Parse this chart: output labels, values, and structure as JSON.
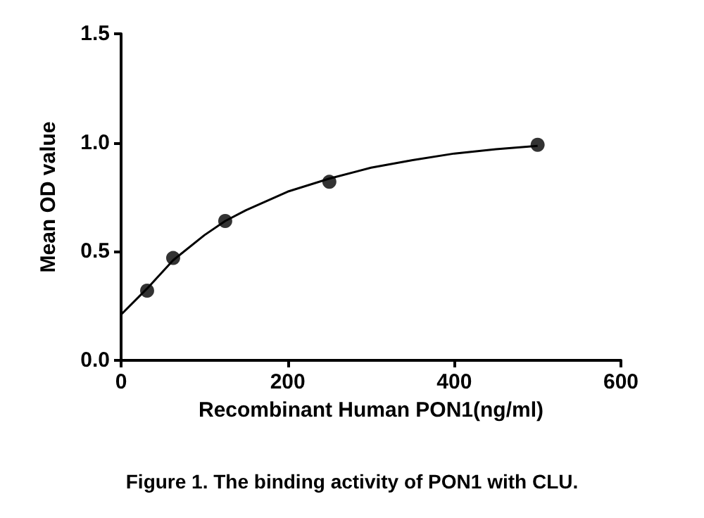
{
  "chart_data": {
    "type": "scatter",
    "title": "Figure 1. The binding activity of PON1 with CLU.",
    "xlabel": "Recombinant Human PON1(ng/ml)",
    "ylabel": "Mean OD value",
    "series": [
      {
        "color": "#000000",
        "marker": "circle",
        "x": [
          31.25,
          62.5,
          125,
          250,
          500
        ],
        "values": [
          0.32,
          0.47,
          0.64,
          0.82,
          0.99
        ]
      },
      {
        "type": "line",
        "color": "#000000",
        "marker": "none",
        "line_style": "solid",
        "x": [
          0,
          31.25,
          62.5,
          100,
          125,
          150,
          200,
          250,
          300,
          350,
          400,
          450,
          500
        ],
        "values": [
          0.21,
          0.33,
          0.46,
          0.575,
          0.64,
          0.69,
          0.775,
          0.835,
          0.885,
          0.92,
          0.95,
          0.97,
          0.985
        ]
      }
    ],
    "xlim": [
      0,
      600
    ],
    "xticks": [
      0,
      200,
      400,
      600
    ],
    "ylim": [
      0,
      1.5
    ],
    "yticks": [
      {
        "value": 0,
        "label": "0.0"
      },
      0.5,
      {
        "value": 1,
        "label": "1.0"
      },
      1.5
    ],
    "grid": false
  }
}
